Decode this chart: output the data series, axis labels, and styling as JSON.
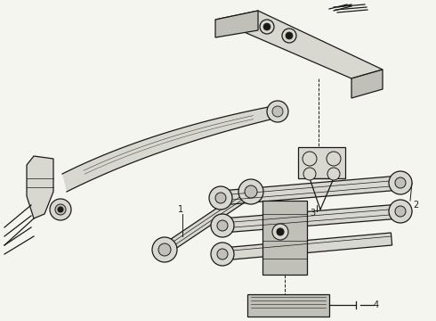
{
  "background_color": "#f5f5f0",
  "line_color": "#1a1a1a",
  "figsize": [
    4.9,
    3.6
  ],
  "dpi": 100,
  "label_fs": 7,
  "lw_main": 0.9,
  "lw_thin": 0.5,
  "fill_light": "#d8d8d0",
  "fill_medium": "#c0c0b8",
  "fill_dark": "#a8a8a0"
}
